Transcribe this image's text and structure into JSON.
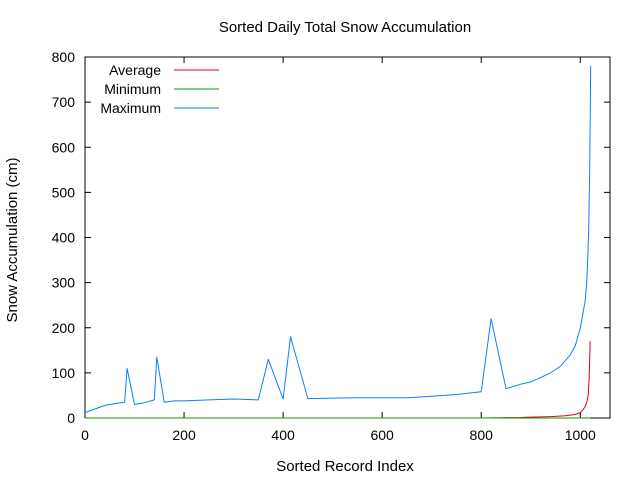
{
  "chart_data": {
    "type": "line",
    "title": "Sorted Daily Total Snow Accumulation",
    "xlabel": "Sorted Record Index",
    "ylabel": "Snow Accumulation (cm)",
    "xlim": [
      0,
      1060
    ],
    "ylim": [
      0,
      800
    ],
    "x_ticks": [
      0,
      200,
      400,
      600,
      800,
      1000
    ],
    "y_ticks": [
      0,
      100,
      200,
      300,
      400,
      500,
      600,
      700,
      800
    ],
    "grid": false,
    "legend_position": "top-left",
    "series": [
      {
        "name": "Average",
        "color": "#e0001b",
        "x": [
          0,
          100,
          200,
          300,
          400,
          500,
          600,
          700,
          800,
          880,
          900,
          940,
          970,
          990,
          1000,
          1005,
          1010,
          1013,
          1016,
          1018,
          1020
        ],
        "y": [
          0,
          0,
          0,
          0,
          0,
          0,
          0,
          0,
          0,
          1,
          2,
          3,
          5,
          8,
          12,
          18,
          25,
          35,
          50,
          90,
          170
        ]
      },
      {
        "name": "Minimum",
        "color": "#00a000",
        "x": [
          0,
          200,
          400,
          600,
          800,
          1000,
          1020
        ],
        "y": [
          0,
          0,
          0,
          0,
          0,
          0,
          0
        ]
      },
      {
        "name": "Maximum",
        "color": "#0a80ff",
        "x": [
          0,
          20,
          40,
          60,
          80,
          85,
          100,
          120,
          140,
          145,
          160,
          180,
          200,
          250,
          300,
          350,
          370,
          400,
          415,
          450,
          500,
          550,
          600,
          650,
          700,
          750,
          800,
          820,
          850,
          880,
          900,
          920,
          940,
          960,
          980,
          990,
          1000,
          1005,
          1010,
          1013,
          1015,
          1017,
          1019,
          1021
        ],
        "y": [
          12,
          20,
          28,
          32,
          35,
          110,
          30,
          34,
          40,
          135,
          35,
          38,
          38,
          40,
          42,
          40,
          130,
          42,
          180,
          43,
          44,
          45,
          45,
          45,
          48,
          52,
          58,
          220,
          65,
          75,
          80,
          90,
          100,
          115,
          140,
          160,
          200,
          230,
          260,
          300,
          350,
          420,
          550,
          780
        ]
      }
    ]
  }
}
